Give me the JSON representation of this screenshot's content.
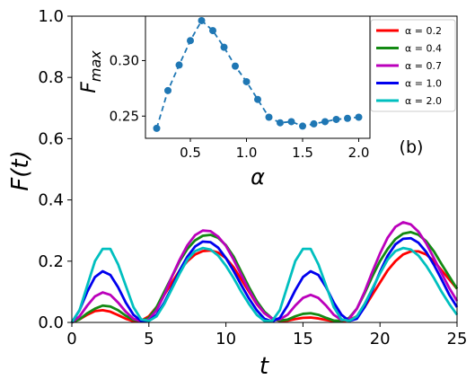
{
  "chart_data": [
    {
      "type": "line",
      "xlabel": "t",
      "ylabel": "F(t)",
      "xlim": [
        0,
        25
      ],
      "ylim": [
        0,
        1.0
      ],
      "xticks": [
        "0",
        "5",
        "10",
        "15",
        "20",
        "25"
      ],
      "yticks": [
        "0.0",
        "0.2",
        "0.4",
        "0.6",
        "0.8",
        "1.0"
      ],
      "annotation": "(b)",
      "legend_position": "top-right",
      "x": [
        0,
        0.5,
        1,
        1.5,
        2,
        2.5,
        3,
        3.5,
        4,
        4.5,
        5,
        5.5,
        6,
        6.5,
        7,
        7.5,
        8,
        8.5,
        9,
        9.5,
        10,
        10.5,
        11,
        11.5,
        12,
        12.5,
        13,
        13.5,
        14,
        14.5,
        15,
        15.5,
        16,
        16.5,
        17,
        17.5,
        18,
        18.5,
        19,
        19.5,
        20,
        20.5,
        21,
        21.5,
        22,
        22.5,
        23,
        23.5,
        24,
        24.5,
        25
      ],
      "series": [
        {
          "name": "α = 0.2",
          "color": "#ff0000",
          "values": [
            0,
            0.01,
            0.025,
            0.037,
            0.04,
            0.035,
            0.024,
            0.012,
            0.004,
            0.006,
            0.02,
            0.05,
            0.09,
            0.13,
            0.17,
            0.2,
            0.222,
            0.233,
            0.235,
            0.228,
            0.21,
            0.18,
            0.14,
            0.1,
            0.06,
            0.03,
            0.012,
            0.005,
            0.006,
            0.011,
            0.015,
            0.016,
            0.013,
            0.008,
            0.004,
            0.003,
            0.008,
            0.02,
            0.05,
            0.09,
            0.13,
            0.17,
            0.2,
            0.222,
            0.232,
            0.232,
            0.222,
            0.2,
            0.17,
            0.14,
            0.11
          ]
        },
        {
          "name": "α = 0.4",
          "color": "#138a13",
          "values": [
            0,
            0.01,
            0.03,
            0.045,
            0.055,
            0.052,
            0.04,
            0.022,
            0.008,
            0.004,
            0.015,
            0.05,
            0.1,
            0.15,
            0.2,
            0.24,
            0.268,
            0.283,
            0.286,
            0.276,
            0.252,
            0.215,
            0.165,
            0.115,
            0.07,
            0.035,
            0.013,
            0.006,
            0.009,
            0.02,
            0.028,
            0.03,
            0.025,
            0.015,
            0.006,
            0.005,
            0.015,
            0.045,
            0.095,
            0.15,
            0.2,
            0.24,
            0.272,
            0.29,
            0.295,
            0.286,
            0.265,
            0.232,
            0.19,
            0.15,
            0.11
          ]
        },
        {
          "name": "α = 0.7",
          "color": "#bb00bb",
          "values": [
            0,
            0.02,
            0.055,
            0.085,
            0.098,
            0.09,
            0.065,
            0.035,
            0.012,
            0.003,
            0.01,
            0.04,
            0.09,
            0.15,
            0.205,
            0.252,
            0.285,
            0.3,
            0.298,
            0.28,
            0.25,
            0.205,
            0.155,
            0.105,
            0.062,
            0.03,
            0.013,
            0.01,
            0.025,
            0.055,
            0.08,
            0.09,
            0.08,
            0.055,
            0.025,
            0.008,
            0.012,
            0.045,
            0.1,
            0.165,
            0.225,
            0.277,
            0.312,
            0.327,
            0.32,
            0.296,
            0.258,
            0.21,
            0.16,
            0.112,
            0.07
          ]
        },
        {
          "name": "α = 1.0",
          "color": "#0000ee",
          "values": [
            0,
            0.04,
            0.1,
            0.148,
            0.167,
            0.155,
            0.115,
            0.065,
            0.025,
            0.005,
            0.005,
            0.025,
            0.065,
            0.115,
            0.17,
            0.215,
            0.248,
            0.264,
            0.262,
            0.244,
            0.21,
            0.168,
            0.122,
            0.078,
            0.04,
            0.012,
            0.003,
            0.015,
            0.055,
            0.105,
            0.148,
            0.167,
            0.155,
            0.115,
            0.065,
            0.025,
            0.005,
            0.012,
            0.05,
            0.105,
            0.165,
            0.218,
            0.255,
            0.273,
            0.275,
            0.26,
            0.23,
            0.188,
            0.14,
            0.09,
            0.05
          ]
        },
        {
          "name": "α = 2.0",
          "color": "#00bfbf",
          "values": [
            0,
            0.04,
            0.12,
            0.2,
            0.24,
            0.24,
            0.19,
            0.12,
            0.05,
            0.01,
            0.005,
            0.02,
            0.06,
            0.11,
            0.16,
            0.205,
            0.233,
            0.243,
            0.238,
            0.218,
            0.185,
            0.145,
            0.1,
            0.06,
            0.025,
            0.005,
            0.005,
            0.04,
            0.12,
            0.2,
            0.24,
            0.24,
            0.19,
            0.12,
            0.05,
            0.01,
            0.005,
            0.02,
            0.06,
            0.11,
            0.16,
            0.205,
            0.233,
            0.243,
            0.238,
            0.218,
            0.185,
            0.145,
            0.1,
            0.06,
            0.025
          ]
        }
      ]
    },
    {
      "type": "line",
      "xlabel": "α",
      "ylabel": "F_max",
      "ylabel_main": "F",
      "ylabel_sub": "max",
      "xlim": [
        0.1,
        2.1
      ],
      "ylim": [
        0.23,
        0.34
      ],
      "xticks": [
        "0.5",
        "1.0",
        "1.5",
        "2.0"
      ],
      "yticks": [
        "0.25",
        "0.30"
      ],
      "color": "#1f77b4",
      "x": [
        0.2,
        0.3,
        0.4,
        0.5,
        0.6,
        0.7,
        0.8,
        0.9,
        1.0,
        1.1,
        1.2,
        1.3,
        1.4,
        1.5,
        1.6,
        1.7,
        1.8,
        1.9,
        2.0
      ],
      "y": [
        0.239,
        0.273,
        0.296,
        0.318,
        0.336,
        0.327,
        0.312,
        0.295,
        0.281,
        0.265,
        0.249,
        0.244,
        0.245,
        0.241,
        0.243,
        0.245,
        0.247,
        0.248,
        0.249
      ]
    }
  ]
}
